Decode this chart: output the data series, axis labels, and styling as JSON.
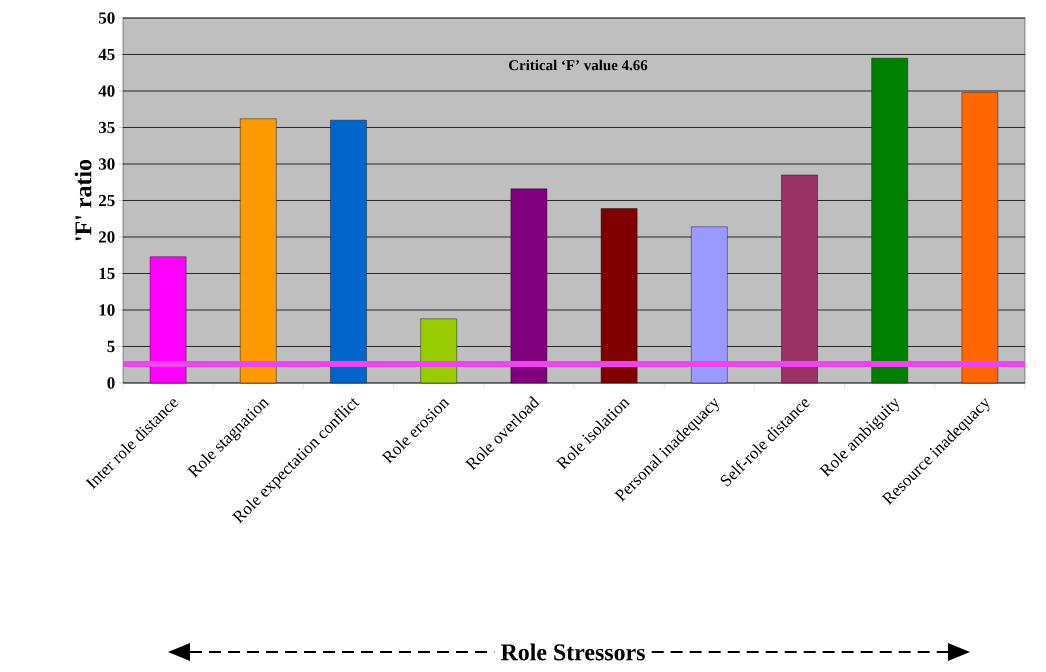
{
  "chart_data": {
    "type": "bar",
    "annotations": [
      "Critical  ‘F’ value 4.66",
      "Role Stressors"
    ],
    "ylabel": "'F' ratio",
    "categories": [
      "Inter role distance",
      "Role stagnation",
      "Role expectation conflict",
      "Role erosion",
      "Role overload",
      "Role isolation",
      "Personal inadequacy",
      "Self-role distance",
      "Role ambiguity",
      "Resource inadequacy"
    ],
    "values": [
      17.3,
      36.2,
      36.0,
      8.8,
      26.6,
      23.9,
      21.4,
      28.5,
      44.5,
      39.8
    ],
    "colors": [
      "#ff00ff",
      "#ff9900",
      "#0066cc",
      "#99cc00",
      "#800080",
      "#800000",
      "#9999ff",
      "#993366",
      "#008000",
      "#ff6600"
    ],
    "ylim": [
      0,
      50
    ],
    "yticks": [
      0,
      5,
      10,
      15,
      20,
      25,
      30,
      35,
      40,
      45,
      50
    ],
    "grid": "y",
    "ref_lines": [
      {
        "axis": "y",
        "value": 2.6,
        "color": "#ee44ee"
      }
    ]
  }
}
